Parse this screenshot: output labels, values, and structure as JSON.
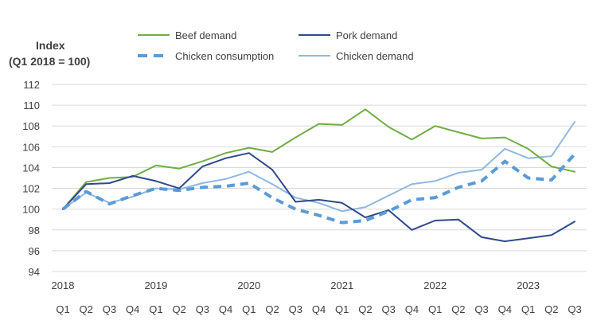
{
  "chart_data": {
    "type": "line",
    "ylabel_line1": "Index",
    "ylabel_line2": "(Q1 2018 = 100)",
    "ylim": [
      94,
      112
    ],
    "yticks": [
      94,
      96,
      98,
      100,
      102,
      104,
      106,
      108,
      110,
      112
    ],
    "quarters": [
      "Q1",
      "Q2",
      "Q3",
      "Q4",
      "Q1",
      "Q2",
      "Q3",
      "Q4",
      "Q1",
      "Q2",
      "Q3",
      "Q4",
      "Q1",
      "Q2",
      "Q3",
      "Q4",
      "Q1",
      "Q2",
      "Q3",
      "Q4",
      "Q1",
      "Q2",
      "Q3"
    ],
    "years": [
      {
        "label": "2018",
        "index": 0
      },
      {
        "label": "2019",
        "index": 4
      },
      {
        "label": "2020",
        "index": 8
      },
      {
        "label": "2021",
        "index": 12
      },
      {
        "label": "2022",
        "index": 16
      },
      {
        "label": "2023",
        "index": 20
      }
    ],
    "grid": true,
    "legend_position": "top",
    "series": [
      {
        "name": "Beef demand",
        "color": "#70AD47",
        "style": "solid",
        "values": [
          100,
          102.6,
          103.0,
          103.1,
          104.2,
          103.9,
          104.6,
          105.4,
          105.9,
          105.5,
          106.9,
          108.2,
          108.1,
          109.6,
          107.9,
          106.7,
          108.0,
          107.4,
          106.8,
          106.9,
          105.8,
          104.1,
          103.6
        ]
      },
      {
        "name": "Pork demand",
        "color": "#2F4A8A",
        "style": "solid",
        "values": [
          100,
          102.4,
          102.5,
          103.2,
          102.7,
          102.0,
          104.1,
          104.9,
          105.4,
          103.8,
          100.7,
          100.9,
          100.6,
          99.2,
          99.9,
          98.0,
          98.9,
          99.0,
          97.3,
          96.9,
          97.2,
          97.5,
          98.8
        ]
      },
      {
        "name": "Chicken consumption",
        "color": "#5B9BD5",
        "style": "dashed",
        "values": [
          100,
          101.7,
          100.5,
          101.3,
          102.0,
          101.8,
          102.1,
          102.2,
          102.5,
          101.1,
          100.0,
          99.4,
          98.7,
          98.9,
          99.8,
          100.9,
          101.1,
          102.1,
          102.7,
          104.6,
          103.0,
          102.8,
          105.3
        ]
      },
      {
        "name": "Chicken demand",
        "color": "#8FB8E2",
        "style": "solid",
        "values": [
          100,
          101.6,
          100.6,
          101.2,
          102.0,
          101.9,
          102.5,
          102.9,
          103.6,
          102.4,
          101.1,
          100.6,
          99.8,
          100.2,
          101.3,
          102.4,
          102.7,
          103.5,
          103.8,
          105.8,
          104.9,
          105.1,
          108.4
        ]
      }
    ]
  }
}
